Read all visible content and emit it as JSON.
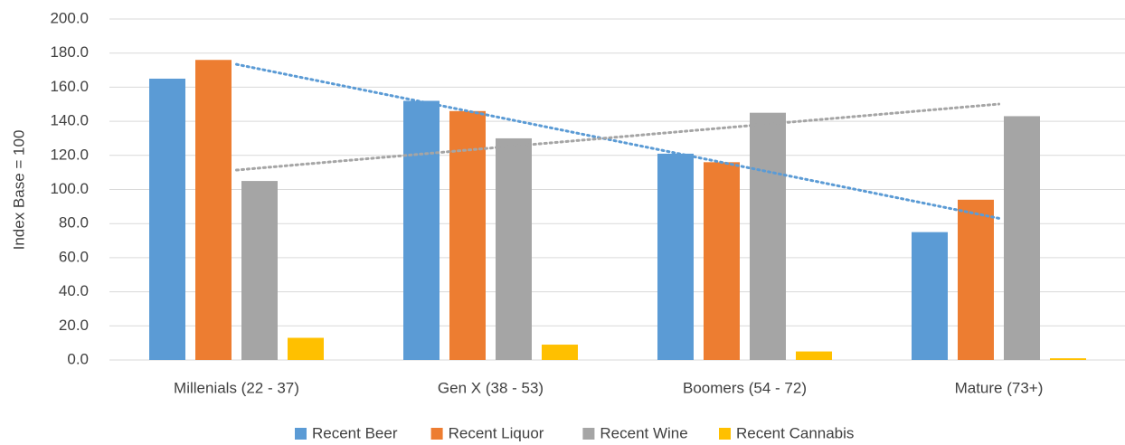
{
  "chart_data": {
    "type": "bar",
    "y_label": "Index Base = 100",
    "categories": [
      "Millenials (22 - 37)",
      "Gen X (38 - 53)",
      "Boomers (54 - 72)",
      "Mature (73+)"
    ],
    "series": [
      {
        "name": "Recent Beer",
        "color": "#5b9bd5",
        "values": [
          165,
          152,
          121,
          75
        ],
        "trendline": true
      },
      {
        "name": "Recent Liquor",
        "color": "#ed7d31",
        "values": [
          176,
          146,
          116,
          94
        ]
      },
      {
        "name": "Recent Wine",
        "color": "#a5a5a5",
        "values": [
          105,
          130,
          145,
          143
        ],
        "trendline": true
      },
      {
        "name": "Recent Cannabis",
        "color": "#ffc000",
        "values": [
          13,
          9,
          5,
          1
        ]
      }
    ],
    "ylim": [
      0,
      200
    ],
    "yticks": [
      {
        "value": 0,
        "label": "0.0"
      },
      {
        "value": 20,
        "label": "20.0"
      },
      {
        "value": 40,
        "label": "40.0"
      },
      {
        "value": 60,
        "label": "60.0"
      },
      {
        "value": 80,
        "label": "80.0"
      },
      {
        "value": 100,
        "label": "100.0"
      },
      {
        "value": 120,
        "label": "120.0"
      },
      {
        "value": 140,
        "label": "140.0"
      },
      {
        "value": 160,
        "label": "160.0"
      },
      {
        "value": 180,
        "label": "180.0"
      },
      {
        "value": 200,
        "label": "200.0"
      }
    ],
    "grid": true,
    "legend": "bottom"
  }
}
